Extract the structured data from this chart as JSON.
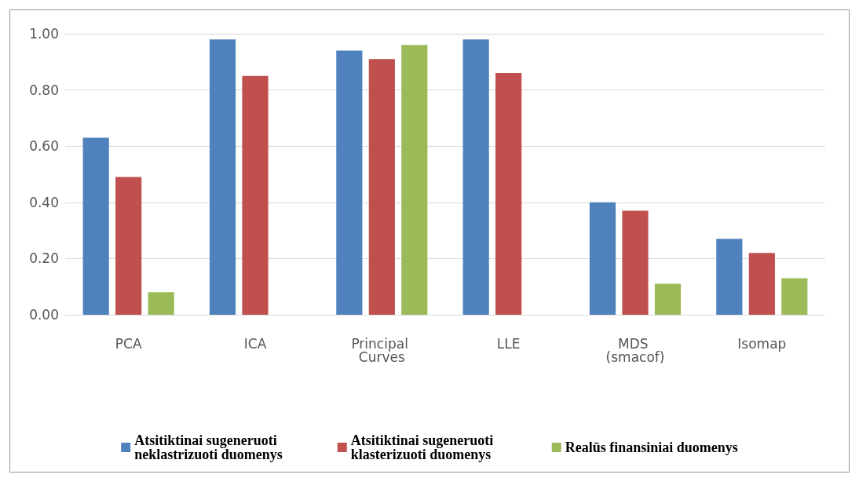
{
  "chart_data": {
    "type": "bar",
    "categories": [
      "PCA",
      "ICA",
      "Principal Curves",
      "LLE",
      "MDS (smacof)",
      "Isomap"
    ],
    "series": [
      {
        "name": "Atsitiktinai sugeneruoti neklastrizuoti duomenys",
        "color": "#4f81bd",
        "values": [
          0.63,
          0.98,
          0.94,
          0.98,
          0.4,
          0.27
        ]
      },
      {
        "name": "Atsitiktinai sugeneruoti klasterizuoti duomenys",
        "color": "#c0504d",
        "values": [
          0.49,
          0.85,
          0.91,
          0.86,
          0.37,
          0.22
        ]
      },
      {
        "name": "Realūs finansiniai duomenys",
        "color": "#9bbb59",
        "values": [
          0.08,
          null,
          0.96,
          null,
          0.11,
          0.13
        ]
      }
    ],
    "ylim": [
      0,
      1
    ],
    "yticks": [
      {
        "value": 0,
        "label": "0.00"
      },
      {
        "value": 0.2,
        "label": "0.20"
      },
      {
        "value": 0.4,
        "label": "0.40"
      },
      {
        "value": 0.6,
        "label": "0.60"
      },
      {
        "value": 0.8,
        "label": "0.80"
      },
      {
        "value": 1,
        "label": "1.00"
      }
    ],
    "grid": "y",
    "legend": "bottom"
  }
}
